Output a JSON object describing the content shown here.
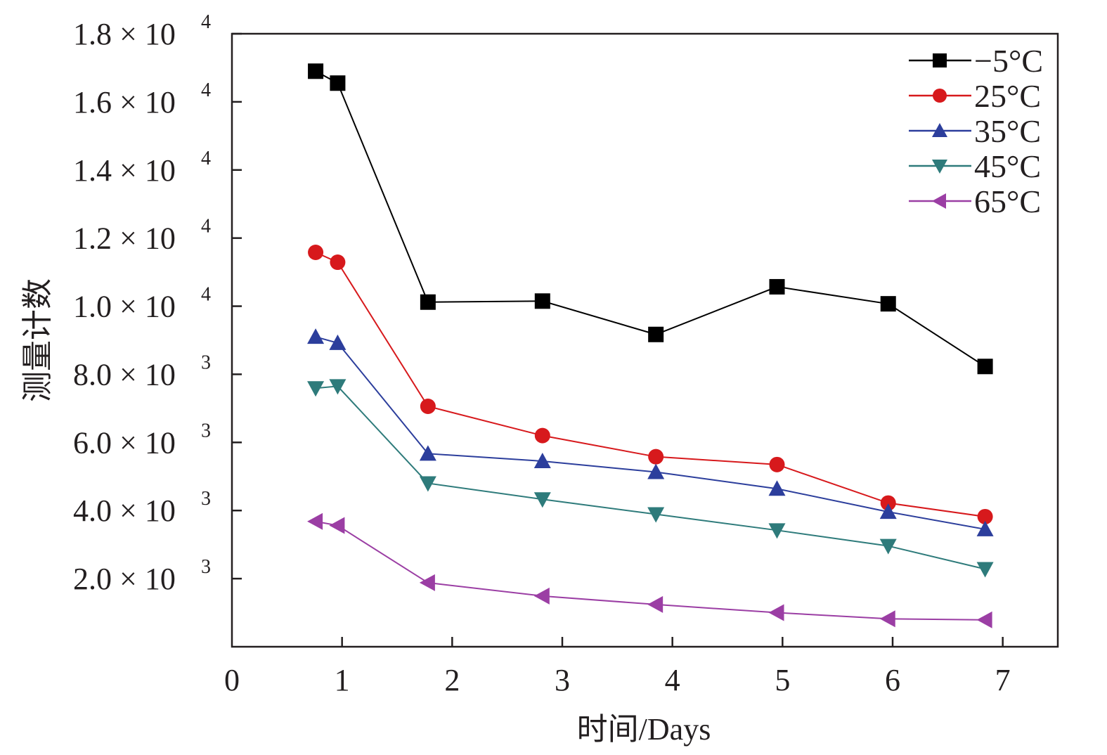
{
  "chart_data": {
    "type": "line",
    "title": "",
    "xlabel": "时间/Days",
    "ylabel": "测量计数",
    "xlim": [
      0,
      7.5
    ],
    "ylim": [
      0,
      18000
    ],
    "grid": false,
    "legend_position": "top-right",
    "x_ticks": [
      {
        "value": 0,
        "label": "0"
      },
      {
        "value": 1,
        "label": "1"
      },
      {
        "value": 2,
        "label": "2"
      },
      {
        "value": 3,
        "label": "3"
      },
      {
        "value": 4,
        "label": "4"
      },
      {
        "value": 5,
        "label": "5"
      },
      {
        "value": 6,
        "label": "6"
      },
      {
        "value": 7,
        "label": "7"
      }
    ],
    "y_ticks": [
      {
        "value": 2000,
        "mantissa": "2.0",
        "times": "×",
        "base": "10",
        "exp": "3"
      },
      {
        "value": 4000,
        "mantissa": "4.0",
        "times": "×",
        "base": "10",
        "exp": "3"
      },
      {
        "value": 6000,
        "mantissa": "6.0",
        "times": "×",
        "base": "10",
        "exp": "3"
      },
      {
        "value": 8000,
        "mantissa": "8.0",
        "times": "×",
        "base": "10",
        "exp": "3"
      },
      {
        "value": 10000,
        "mantissa": "1.0",
        "times": "×",
        "base": "10",
        "exp": "4"
      },
      {
        "value": 12000,
        "mantissa": "1.2",
        "times": "×",
        "base": "10",
        "exp": "4"
      },
      {
        "value": 14000,
        "mantissa": "1.4",
        "times": "×",
        "base": "10",
        "exp": "4"
      },
      {
        "value": 16000,
        "mantissa": "1.6",
        "times": "×",
        "base": "10",
        "exp": "4"
      },
      {
        "value": 18000,
        "mantissa": "1.8",
        "times": "×",
        "base": "10",
        "exp": "4"
      }
    ],
    "x": [
      0.76,
      0.96,
      1.78,
      2.82,
      3.85,
      4.95,
      5.96,
      6.84
    ],
    "series": [
      {
        "name": "−5°C",
        "color": "#000000",
        "marker": "square",
        "values": [
          16900,
          16550,
          10120,
          10150,
          9170,
          10570,
          10070,
          8230
        ]
      },
      {
        "name": "25°C",
        "color": "#d7191c",
        "marker": "circle",
        "values": [
          11580,
          11290,
          7060,
          6200,
          5580,
          5350,
          4220,
          3820
        ]
      },
      {
        "name": "35°C",
        "color": "#2c3e9c",
        "marker": "triangle-up",
        "values": [
          9100,
          8920,
          5670,
          5450,
          5130,
          4640,
          3960,
          3450
        ]
      },
      {
        "name": "45°C",
        "color": "#2e7b7b",
        "marker": "triangle-down",
        "values": [
          7590,
          7650,
          4800,
          4330,
          3890,
          3420,
          2960,
          2280
        ]
      },
      {
        "name": "65°C",
        "color": "#9b3ea4",
        "marker": "triangle-left",
        "values": [
          3680,
          3560,
          1880,
          1490,
          1240,
          1000,
          820,
          790
        ]
      }
    ]
  }
}
